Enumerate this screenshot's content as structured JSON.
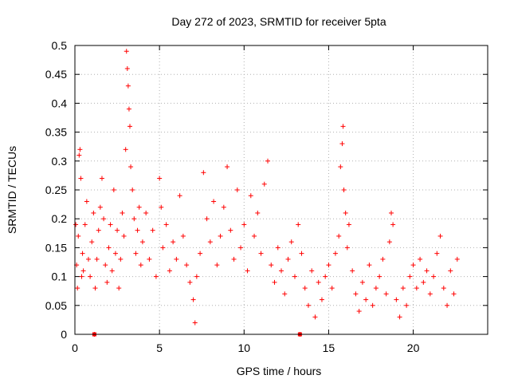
{
  "chart_data": {
    "type": "scatter",
    "title": "Day 272 of 2023, SRMTID for receiver 5pta",
    "xlabel": "GPS time / hours",
    "ylabel": "SRMTID / TECUs",
    "xlim": [
      0,
      24.4
    ],
    "ylim": [
      0,
      0.5
    ],
    "xticks": [
      0,
      5,
      10,
      15,
      20
    ],
    "xtick_labels": [
      "0",
      "5",
      "10",
      "15",
      "20"
    ],
    "yticks": [
      0,
      0.05,
      0.1,
      0.15,
      0.2,
      0.25,
      0.3,
      0.35,
      0.4,
      0.45,
      0.5
    ],
    "ytick_labels": [
      "0",
      "0.05",
      "0.1",
      "0.15",
      "0.2",
      "0.25",
      "0.3",
      "0.35",
      "0.4",
      "0.45",
      "0.5"
    ],
    "grid": true,
    "marker": "+",
    "colors": {
      "series": "#ff0000",
      "grid": "#b0b0b0",
      "axis": "#000000"
    },
    "series": [
      {
        "name": "SRMTID",
        "data": [
          [
            0.05,
            0.19
          ],
          [
            0.1,
            0.12
          ],
          [
            0.15,
            0.08
          ],
          [
            0.2,
            0.17
          ],
          [
            0.25,
            0.31
          ],
          [
            0.3,
            0.32
          ],
          [
            0.35,
            0.27
          ],
          [
            0.4,
            0.1
          ],
          [
            0.45,
            0.14
          ],
          [
            0.5,
            0.11
          ],
          [
            0.6,
            0.19
          ],
          [
            0.7,
            0.23
          ],
          [
            0.8,
            0.13
          ],
          [
            0.9,
            0.1
          ],
          [
            1.0,
            0.16
          ],
          [
            1.1,
            0.21
          ],
          [
            1.15,
            0.0
          ],
          [
            1.2,
            0.08
          ],
          [
            1.3,
            0.13
          ],
          [
            1.4,
            0.18
          ],
          [
            1.5,
            0.22
          ],
          [
            1.6,
            0.27
          ],
          [
            1.7,
            0.2
          ],
          [
            1.8,
            0.12
          ],
          [
            1.9,
            0.09
          ],
          [
            2.0,
            0.15
          ],
          [
            2.1,
            0.19
          ],
          [
            2.2,
            0.11
          ],
          [
            2.3,
            0.25
          ],
          [
            2.4,
            0.14
          ],
          [
            2.5,
            0.18
          ],
          [
            2.6,
            0.08
          ],
          [
            2.7,
            0.13
          ],
          [
            2.8,
            0.21
          ],
          [
            2.9,
            0.17
          ],
          [
            3.0,
            0.32
          ],
          [
            3.05,
            0.49
          ],
          [
            3.1,
            0.46
          ],
          [
            3.15,
            0.43
          ],
          [
            3.2,
            0.39
          ],
          [
            3.25,
            0.36
          ],
          [
            3.3,
            0.29
          ],
          [
            3.4,
            0.25
          ],
          [
            3.5,
            0.2
          ],
          [
            3.6,
            0.14
          ],
          [
            3.7,
            0.18
          ],
          [
            3.8,
            0.22
          ],
          [
            3.9,
            0.12
          ],
          [
            4.0,
            0.16
          ],
          [
            4.2,
            0.21
          ],
          [
            4.4,
            0.13
          ],
          [
            4.6,
            0.18
          ],
          [
            4.8,
            0.1
          ],
          [
            5.0,
            0.27
          ],
          [
            5.1,
            0.22
          ],
          [
            5.2,
            0.15
          ],
          [
            5.4,
            0.19
          ],
          [
            5.6,
            0.11
          ],
          [
            5.8,
            0.16
          ],
          [
            6.0,
            0.13
          ],
          [
            6.2,
            0.24
          ],
          [
            6.4,
            0.17
          ],
          [
            6.6,
            0.12
          ],
          [
            6.8,
            0.09
          ],
          [
            7.0,
            0.06
          ],
          [
            7.1,
            0.02
          ],
          [
            7.2,
            0.1
          ],
          [
            7.4,
            0.14
          ],
          [
            7.6,
            0.28
          ],
          [
            7.8,
            0.2
          ],
          [
            8.0,
            0.16
          ],
          [
            8.2,
            0.23
          ],
          [
            8.4,
            0.12
          ],
          [
            8.6,
            0.17
          ],
          [
            8.8,
            0.22
          ],
          [
            9.0,
            0.29
          ],
          [
            9.2,
            0.18
          ],
          [
            9.4,
            0.13
          ],
          [
            9.6,
            0.25
          ],
          [
            9.8,
            0.15
          ],
          [
            10.0,
            0.19
          ],
          [
            10.2,
            0.11
          ],
          [
            10.4,
            0.24
          ],
          [
            10.6,
            0.17
          ],
          [
            10.8,
            0.21
          ],
          [
            11.0,
            0.14
          ],
          [
            11.2,
            0.26
          ],
          [
            11.4,
            0.3
          ],
          [
            11.6,
            0.12
          ],
          [
            11.8,
            0.09
          ],
          [
            12.0,
            0.15
          ],
          [
            12.2,
            0.11
          ],
          [
            12.4,
            0.07
          ],
          [
            12.6,
            0.13
          ],
          [
            12.8,
            0.16
          ],
          [
            13.0,
            0.1
          ],
          [
            13.2,
            0.19
          ],
          [
            13.3,
            0.0
          ],
          [
            13.4,
            0.14
          ],
          [
            13.6,
            0.08
          ],
          [
            13.8,
            0.05
          ],
          [
            14.0,
            0.11
          ],
          [
            14.2,
            0.03
          ],
          [
            14.4,
            0.09
          ],
          [
            14.6,
            0.06
          ],
          [
            14.8,
            0.1
          ],
          [
            15.0,
            0.12
          ],
          [
            15.2,
            0.08
          ],
          [
            15.4,
            0.14
          ],
          [
            15.6,
            0.17
          ],
          [
            15.7,
            0.29
          ],
          [
            15.8,
            0.33
          ],
          [
            15.85,
            0.36
          ],
          [
            15.9,
            0.25
          ],
          [
            16.0,
            0.21
          ],
          [
            16.1,
            0.15
          ],
          [
            16.2,
            0.19
          ],
          [
            16.4,
            0.11
          ],
          [
            16.6,
            0.07
          ],
          [
            16.8,
            0.04
          ],
          [
            17.0,
            0.09
          ],
          [
            17.2,
            0.06
          ],
          [
            17.4,
            0.12
          ],
          [
            17.6,
            0.05
          ],
          [
            17.8,
            0.08
          ],
          [
            18.0,
            0.1
          ],
          [
            18.2,
            0.13
          ],
          [
            18.4,
            0.07
          ],
          [
            18.6,
            0.16
          ],
          [
            18.7,
            0.21
          ],
          [
            18.8,
            0.19
          ],
          [
            19.0,
            0.06
          ],
          [
            19.2,
            0.03
          ],
          [
            19.4,
            0.08
          ],
          [
            19.6,
            0.05
          ],
          [
            19.8,
            0.1
          ],
          [
            20.0,
            0.12
          ],
          [
            20.2,
            0.08
          ],
          [
            20.4,
            0.13
          ],
          [
            20.6,
            0.09
          ],
          [
            20.8,
            0.11
          ],
          [
            21.0,
            0.07
          ],
          [
            21.2,
            0.1
          ],
          [
            21.4,
            0.14
          ],
          [
            21.6,
            0.17
          ],
          [
            21.8,
            0.08
          ],
          [
            22.0,
            0.05
          ],
          [
            22.2,
            0.11
          ],
          [
            22.4,
            0.07
          ],
          [
            22.6,
            0.13
          ]
        ]
      }
    ],
    "highlighted_points": [
      [
        1.15,
        0.0
      ],
      [
        13.3,
        0.0
      ]
    ]
  }
}
